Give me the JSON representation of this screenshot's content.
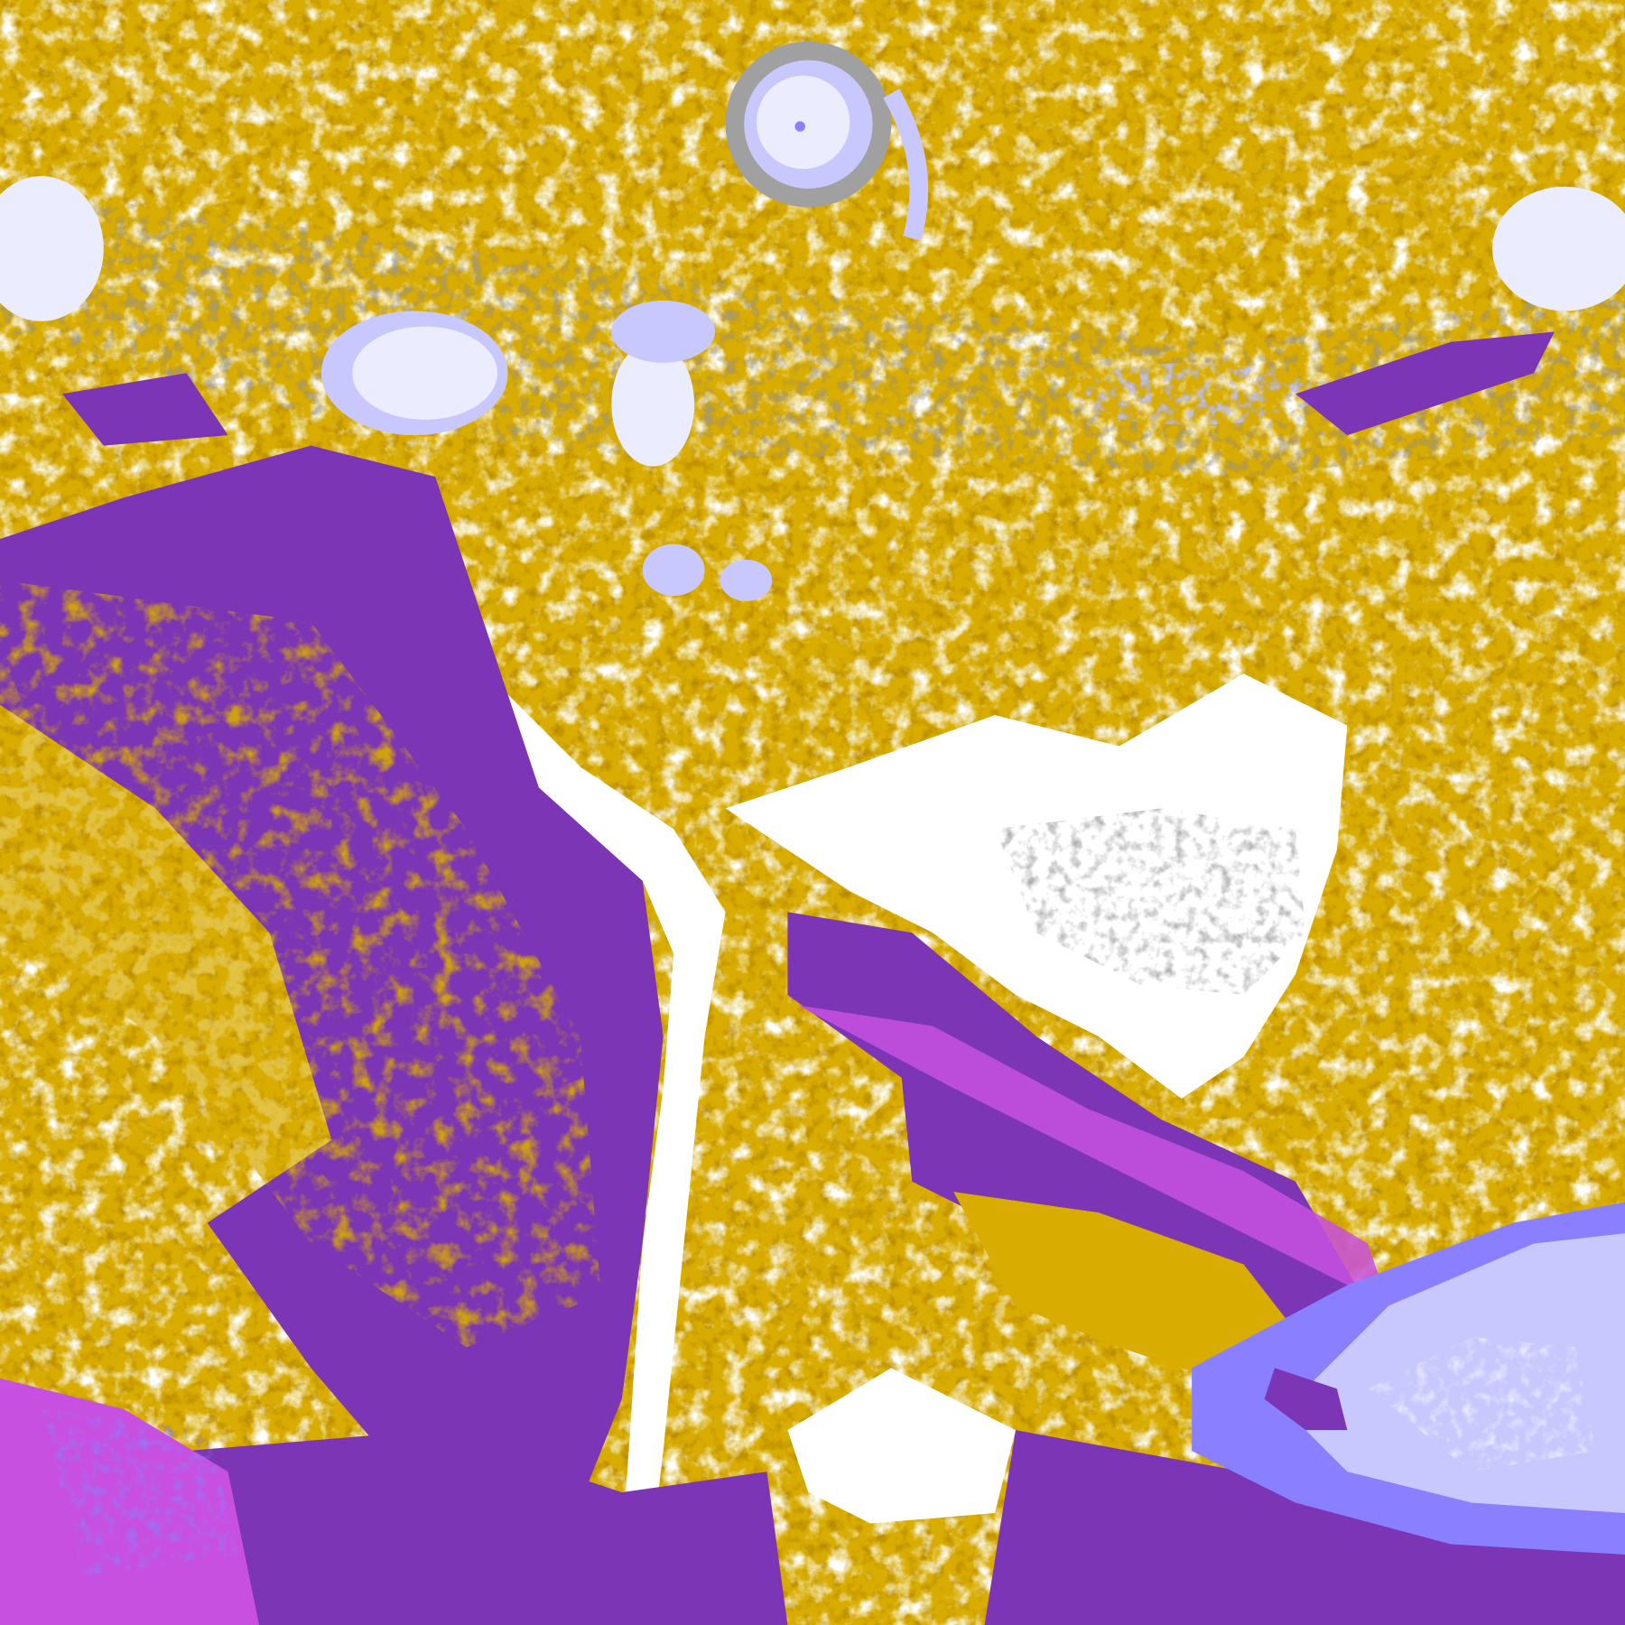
{
  "image": {
    "kind": "false-color satellite cloud-top imagery",
    "palette": {
      "clear": "#ffffff",
      "gold_light": "#d8ac00",
      "gold_dark": "#b88a00",
      "gray": "#a0a0a0",
      "purple": "#7c35b4",
      "magenta": "#c850e0",
      "periwinkle": "#8a80ff",
      "lavender": "#c8c8ff",
      "pale": "#ececff"
    }
  }
}
